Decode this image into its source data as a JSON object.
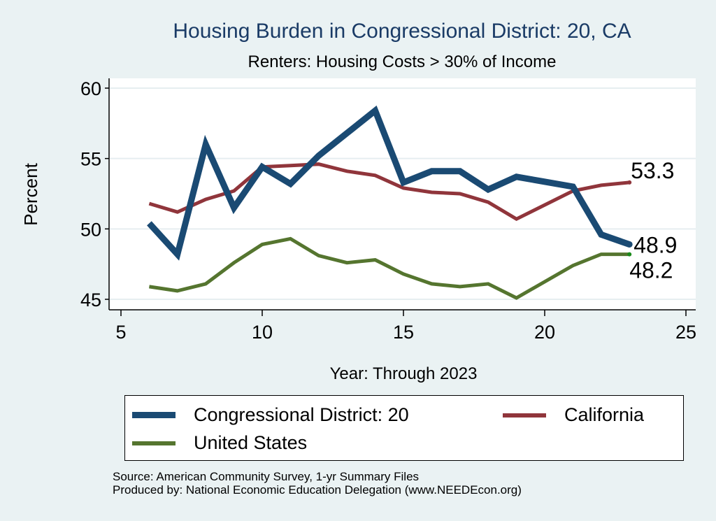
{
  "chart_data": {
    "type": "line",
    "title": "Housing Burden in Congressional District:  20, CA",
    "subtitle": "Renters: Housing Costs > 30% of Income",
    "xlabel": "Year: Through 2023",
    "ylabel": "Percent",
    "xlim": [
      5,
      25
    ],
    "ylim": [
      45,
      60
    ],
    "xticks": [
      5,
      10,
      15,
      20,
      25
    ],
    "yticks": [
      45,
      50,
      55,
      60
    ],
    "grid": true,
    "legend_position": "bottom",
    "series": [
      {
        "name": "Congressional District:  20",
        "color": "#1a4a73",
        "x": [
          6,
          7,
          8,
          9,
          10,
          11,
          12,
          13,
          14,
          15,
          16,
          17,
          18,
          19,
          21,
          22,
          23
        ],
        "values": [
          50.4,
          48.2,
          56.0,
          51.5,
          54.4,
          53.2,
          55.2,
          56.8,
          58.4,
          53.3,
          54.1,
          54.1,
          52.8,
          53.7,
          53.0,
          49.6,
          48.9
        ],
        "end_label": "48.9"
      },
      {
        "name": "California",
        "color": "#90353b",
        "x": [
          6,
          7,
          8,
          9,
          10,
          11,
          12,
          13,
          14,
          15,
          16,
          17,
          18,
          19,
          21,
          22,
          23
        ],
        "values": [
          51.8,
          51.2,
          52.1,
          52.7,
          54.4,
          54.5,
          54.6,
          54.1,
          53.8,
          52.9,
          52.6,
          52.5,
          51.9,
          50.7,
          52.7,
          53.1,
          53.3
        ],
        "end_label": "53.3"
      },
      {
        "name": "United States",
        "color": "#55752f",
        "x": [
          6,
          7,
          8,
          9,
          10,
          11,
          12,
          13,
          14,
          15,
          16,
          17,
          18,
          19,
          21,
          22,
          23
        ],
        "values": [
          45.9,
          45.6,
          46.1,
          47.6,
          48.9,
          49.3,
          48.1,
          47.6,
          47.8,
          46.8,
          46.1,
          45.9,
          46.1,
          45.1,
          47.4,
          48.2,
          48.2
        ],
        "end_label": "48.2"
      }
    ]
  },
  "legend": {
    "items": [
      {
        "label": "Congressional District:  20",
        "color": "#1a4a73"
      },
      {
        "label": "California",
        "color": "#90353b"
      },
      {
        "label": "United States",
        "color": "#55752f"
      }
    ]
  },
  "source": {
    "line1": "Source: American Community Survey, 1-yr Summary Files",
    "line2": "Produced by: National Economic Education Delegation (www.NEEDEcon.org)"
  }
}
